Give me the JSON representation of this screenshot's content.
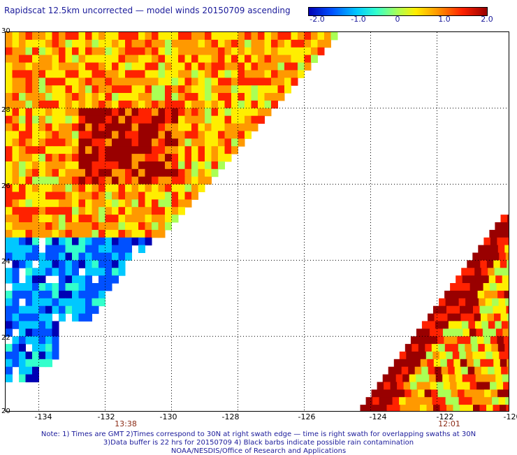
{
  "title": "Rapidscat 12.5km uncorrected — model winds 20150709 ascending",
  "colorbar": {
    "tick_labels": [
      "-2.0",
      "-1.0",
      "0",
      "1.0",
      "2.0"
    ],
    "range": [
      -2.0,
      2.0
    ],
    "colors": [
      "#0000b4",
      "#0050ff",
      "#00c8ff",
      "#33ffcc",
      "#aaff55",
      "#ffee00",
      "#ff9900",
      "#ff2200",
      "#990000"
    ]
  },
  "axes": {
    "x_ticks": [
      "-134",
      "-132",
      "-130",
      "-128",
      "-126",
      "-124",
      "-122",
      "-120"
    ],
    "y_ticks": [
      "30",
      "28",
      "26",
      "24",
      "22",
      "20"
    ],
    "lon_range": [
      -135,
      -119.8
    ],
    "lat_range": [
      20,
      30
    ],
    "grid": "dotted"
  },
  "swath_times": [
    {
      "label": "13:38",
      "lon": -132.5
    },
    {
      "label": "12:01",
      "lon": -122.2
    }
  ],
  "notes": [
    "Note: 1) Times are GMT 2)Times correspond to 30N at right swath edge — time is right swath for overlapping swaths at 30N",
    "3)Data buffer is 22 hrs for 20150709 4) Black barbs indicate possible rain contamination",
    "NOAA/NESDIS/Office of Research and Applications"
  ],
  "map_data": {
    "type": "heatmap",
    "quantity": "wind speed difference (scatterometer − model)",
    "cell_deg": 0.2,
    "swaths": [
      {
        "name": "left",
        "edge": [
          [
            -125,
            30
          ],
          [
            -131,
            24
          ]
        ],
        "north_warm_lat": 24.6,
        "extends_to_lat": 20.8
      },
      {
        "name": "right",
        "edge": [
          [
            -124.4,
            20
          ],
          [
            -120,
            25.2
          ]
        ]
      }
    ]
  }
}
